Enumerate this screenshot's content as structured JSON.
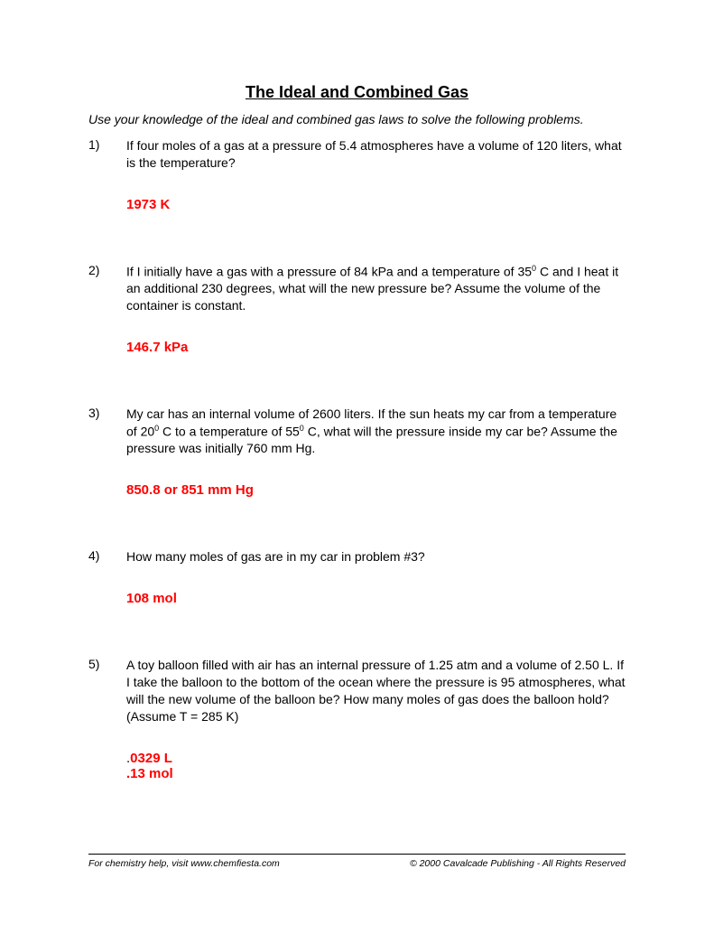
{
  "title": "The Ideal and Combined Gas",
  "instructions": "Use your knowledge of the ideal and combined gas laws to solve the following problems.",
  "problems": [
    {
      "number": "1)",
      "text": "If four moles of a gas at a pressure of 5.4 atmospheres have a volume of 120 liters, what is the temperature?",
      "answer": "1973 K"
    },
    {
      "number": "2)",
      "text_html": "If I initially have a gas with a pressure of 84 kPa and a temperature of 35<sup>0</sup> C and I heat it an additional 230 degrees, what will the new pressure be? Assume the volume of the container is constant.",
      "answer": "146.7 kPa"
    },
    {
      "number": "3)",
      "text_html": "My car has an internal volume of 2600 liters.  If the sun heats my car from a temperature of 20<sup>0</sup> C to a temperature of 55<sup>0</sup> C, what will the pressure inside my car be?  Assume the pressure was initially 760 mm Hg.",
      "answer": "850.8 or 851 mm Hg"
    },
    {
      "number": "4)",
      "text": "How many moles of gas are in my car in problem #3?",
      "answer": "108 mol"
    },
    {
      "number": "5)",
      "text": "A toy balloon filled with air has an internal pressure of 1.25 atm and a volume of 2.50 L.  If I take the balloon to the bottom of the ocean where the pressure is 95 atmospheres, what will the new volume of the balloon be?  How many moles of gas does the balloon hold?  (Assume T = 285 K)",
      "answer_html": "<span style=\"color:#000000;font-weight:normal;\">.</span>0329 L<br>.13 mol"
    }
  ],
  "footer": {
    "left": "For chemistry help, visit www.chemfiesta.com",
    "right": "© 2000 Cavalcade Publishing - All Rights Reserved"
  },
  "colors": {
    "answer": "#ff0000",
    "text": "#000000",
    "background": "#ffffff"
  },
  "typography": {
    "body_font": "Arial",
    "title_size": 18,
    "body_size": 14,
    "answer_size": 15,
    "footer_size": 10.5
  }
}
